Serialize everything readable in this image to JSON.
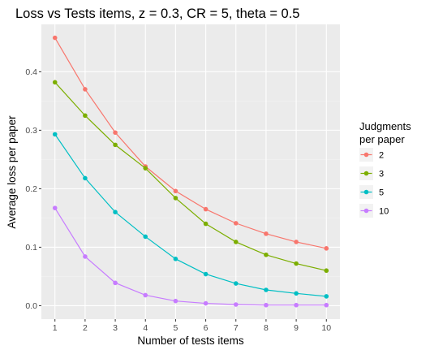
{
  "chart_data": {
    "type": "line",
    "title": "Loss vs Tests items, z = 0.3, CR = 5, theta = 0.5",
    "xlabel": "Number of tests items",
    "ylabel": "Average loss per paper",
    "x": [
      1,
      2,
      3,
      4,
      5,
      6,
      7,
      8,
      9,
      10
    ],
    "x_ticks": [
      "1",
      "2",
      "3",
      "4",
      "5",
      "6",
      "7",
      "8",
      "9",
      "10"
    ],
    "y_ticks": [
      "0.0",
      "0.1",
      "0.2",
      "0.3",
      "0.4"
    ],
    "y_tick_values": [
      0.0,
      0.1,
      0.2,
      0.3,
      0.4
    ],
    "xlim": [
      0.55,
      10.45
    ],
    "ylim": [
      -0.023,
      0.481
    ],
    "grid": true,
    "legend_position": "right",
    "legend_title_line1": "Judgments",
    "legend_title_line2": "per paper",
    "series": [
      {
        "name": "2",
        "color": "#F8766D",
        "values": [
          0.458,
          0.37,
          0.296,
          0.238,
          0.196,
          0.165,
          0.141,
          0.123,
          0.109,
          0.098
        ]
      },
      {
        "name": "3",
        "color": "#7CAE00",
        "values": [
          0.382,
          0.325,
          0.275,
          0.235,
          0.184,
          0.14,
          0.109,
          0.087,
          0.072,
          0.06
        ]
      },
      {
        "name": "5",
        "color": "#00BFC4",
        "values": [
          0.293,
          0.218,
          0.16,
          0.118,
          0.08,
          0.054,
          0.038,
          0.027,
          0.021,
          0.016
        ]
      },
      {
        "name": "10",
        "color": "#C77CFF",
        "values": [
          0.167,
          0.084,
          0.039,
          0.018,
          0.008,
          0.004,
          0.002,
          0.001,
          0.001,
          0.001
        ]
      }
    ]
  }
}
